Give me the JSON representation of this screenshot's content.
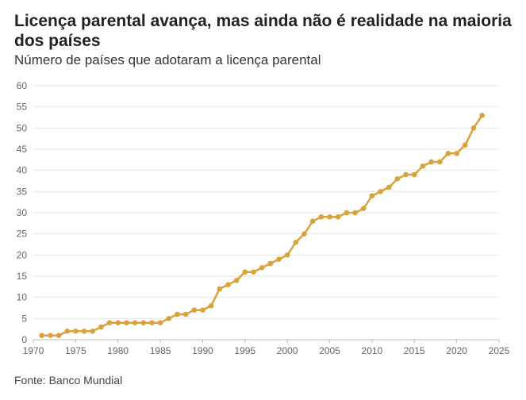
{
  "header": {
    "title": "Licença parental avança, mas ainda não é realidade na maioria dos países",
    "subtitle": "Número de países que adotaram a licença parental"
  },
  "footer": {
    "source": "Fonte: Banco Mundial"
  },
  "chart_data": {
    "type": "line",
    "title": "Licença parental avança, mas ainda não é realidade na maioria dos países",
    "subtitle": "Número de países que adotaram a licença parental",
    "xlabel": "",
    "ylabel": "",
    "xlim": [
      1970,
      2025
    ],
    "ylim": [
      0,
      60
    ],
    "x_ticks": [
      1970,
      1975,
      1980,
      1985,
      1990,
      1995,
      2000,
      2005,
      2010,
      2015,
      2020,
      2025
    ],
    "y_ticks": [
      0,
      5,
      10,
      15,
      20,
      25,
      30,
      35,
      40,
      45,
      50,
      55,
      60
    ],
    "grid": true,
    "legend": "none",
    "color": "#d9a23a",
    "x": [
      1971,
      1972,
      1973,
      1974,
      1975,
      1976,
      1977,
      1978,
      1979,
      1980,
      1981,
      1982,
      1983,
      1984,
      1985,
      1986,
      1987,
      1988,
      1989,
      1990,
      1991,
      1992,
      1993,
      1994,
      1995,
      1996,
      1997,
      1998,
      1999,
      2000,
      2001,
      2002,
      2003,
      2004,
      2005,
      2006,
      2007,
      2008,
      2009,
      2010,
      2011,
      2012,
      2013,
      2014,
      2015,
      2016,
      2017,
      2018,
      2019,
      2020,
      2021,
      2022,
      2023
    ],
    "y": [
      1,
      1,
      1,
      2,
      2,
      2,
      2,
      3,
      4,
      4,
      4,
      4,
      4,
      4,
      4,
      5,
      6,
      6,
      7,
      7,
      8,
      12,
      13,
      14,
      16,
      16,
      17,
      18,
      19,
      20,
      23,
      25,
      28,
      29,
      29,
      29,
      30,
      30,
      31,
      34,
      35,
      36,
      38,
      39,
      39,
      41,
      42,
      42,
      44,
      44,
      46,
      50,
      53
    ]
  }
}
